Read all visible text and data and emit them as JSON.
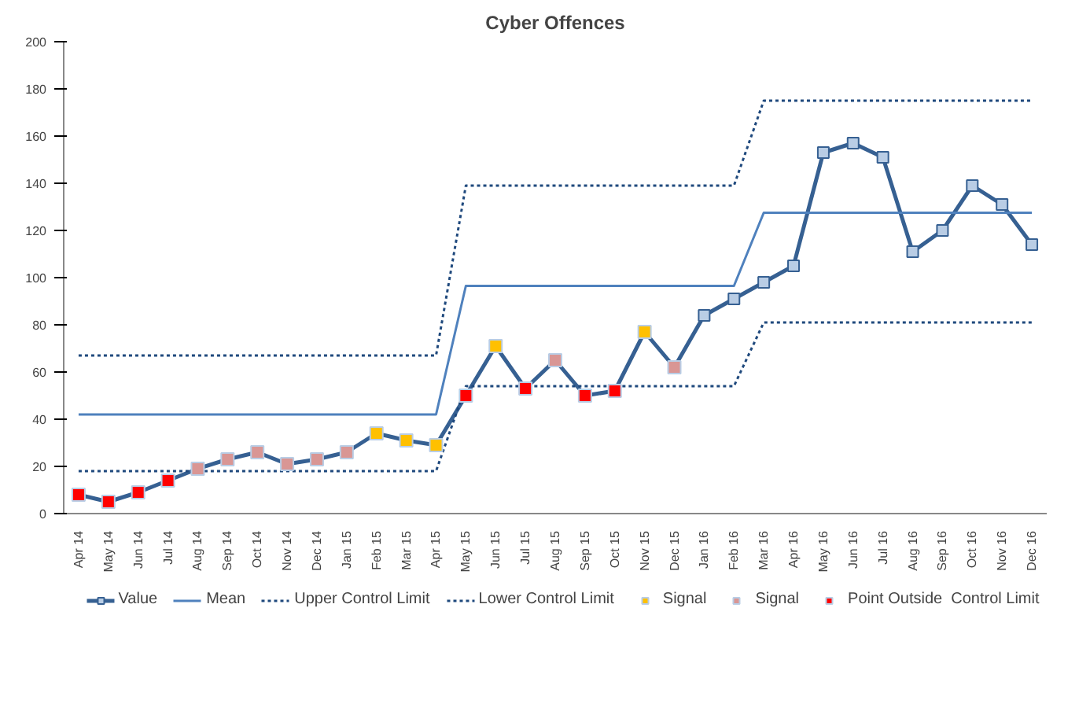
{
  "chart_data": {
    "type": "line",
    "title": "Cyber Offences",
    "categories": [
      "Apr 14",
      "May 14",
      "Jun 14",
      "Jul 14",
      "Aug 14",
      "Sep 14",
      "Oct 14",
      "Nov 14",
      "Dec 14",
      "Jan 15",
      "Feb 15",
      "Mar 15",
      "Apr 15",
      "May 15",
      "Jun 15",
      "Jul 15",
      "Aug 15",
      "Sep 15",
      "Oct 15",
      "Nov 15",
      "Dec 15",
      "Jan 16",
      "Feb 16",
      "Mar 16",
      "Apr 16",
      "May 16",
      "Jun 16",
      "Jul 16",
      "Aug 16",
      "Sep 16",
      "Oct 16",
      "Nov 16",
      "Dec 16"
    ],
    "series": [
      {
        "name": "Value",
        "color": "#366092",
        "marker": "square",
        "line_style": "solid",
        "values": [
          8,
          5,
          9,
          14,
          19,
          23,
          26,
          21,
          23,
          26,
          34,
          31,
          29,
          50,
          71,
          53,
          65,
          50,
          52,
          77,
          62,
          84,
          91,
          98,
          105,
          153,
          157,
          151,
          111,
          120,
          139,
          131,
          114
        ]
      },
      {
        "name": "Mean",
        "color": "#4f81bd",
        "marker": "none",
        "line_style": "solid",
        "values": [
          42,
          42,
          42,
          42,
          42,
          42,
          42,
          42,
          42,
          42,
          42,
          42,
          42,
          96.5,
          96.5,
          96.5,
          96.5,
          96.5,
          96.5,
          96.5,
          96.5,
          96.5,
          96.5,
          127.5,
          127.5,
          127.5,
          127.5,
          127.5,
          127.5,
          127.5,
          127.5,
          127.5,
          127.5
        ]
      },
      {
        "name": "Upper Control Limit",
        "color": "#1f497d",
        "marker": "none",
        "line_style": "dotted",
        "values": [
          67,
          67,
          67,
          67,
          67,
          67,
          67,
          67,
          67,
          67,
          67,
          67,
          67,
          139,
          139,
          139,
          139,
          139,
          139,
          139,
          139,
          139,
          139,
          175,
          175,
          175,
          175,
          175,
          175,
          175,
          175,
          175,
          175
        ]
      },
      {
        "name": "Lower Control Limit",
        "color": "#1f497d",
        "marker": "none",
        "line_style": "dotted",
        "values": [
          18,
          18,
          18,
          18,
          18,
          18,
          18,
          18,
          18,
          18,
          18,
          18,
          18,
          54,
          54,
          54,
          54,
          54,
          54,
          54,
          54,
          54,
          54,
          81,
          81,
          81,
          81,
          81,
          81,
          81,
          81,
          81,
          81
        ]
      },
      {
        "name": "Signal",
        "type": "scatter",
        "color": "#ffc000",
        "marker": "square",
        "values": [
          null,
          null,
          null,
          null,
          null,
          null,
          null,
          null,
          null,
          null,
          34,
          31,
          29,
          null,
          71,
          null,
          null,
          null,
          null,
          77,
          null,
          null,
          null,
          null,
          null,
          null,
          null,
          null,
          null,
          null,
          null,
          null,
          null
        ]
      },
      {
        "name": "Signal",
        "type": "scatter",
        "color": "#d99694",
        "marker": "square",
        "values": [
          null,
          null,
          null,
          null,
          19,
          23,
          26,
          21,
          23,
          26,
          null,
          null,
          null,
          null,
          null,
          null,
          65,
          null,
          null,
          null,
          62,
          null,
          null,
          null,
          null,
          null,
          null,
          null,
          null,
          null,
          null,
          null,
          null
        ]
      },
      {
        "name": "Point Outside  Control Limit",
        "type": "scatter",
        "color": "#ff0000",
        "marker": "square",
        "values": [
          8,
          5,
          9,
          14,
          null,
          null,
          null,
          null,
          null,
          null,
          null,
          null,
          null,
          50,
          null,
          53,
          null,
          50,
          52,
          null,
          null,
          null,
          null,
          null,
          null,
          null,
          null,
          null,
          null,
          null,
          null,
          null,
          null
        ]
      }
    ],
    "ylim": [
      0,
      200
    ],
    "yticks": [
      0,
      20,
      40,
      60,
      80,
      100,
      120,
      140,
      160,
      180,
      200
    ],
    "grid": false,
    "legend": "bottom"
  }
}
